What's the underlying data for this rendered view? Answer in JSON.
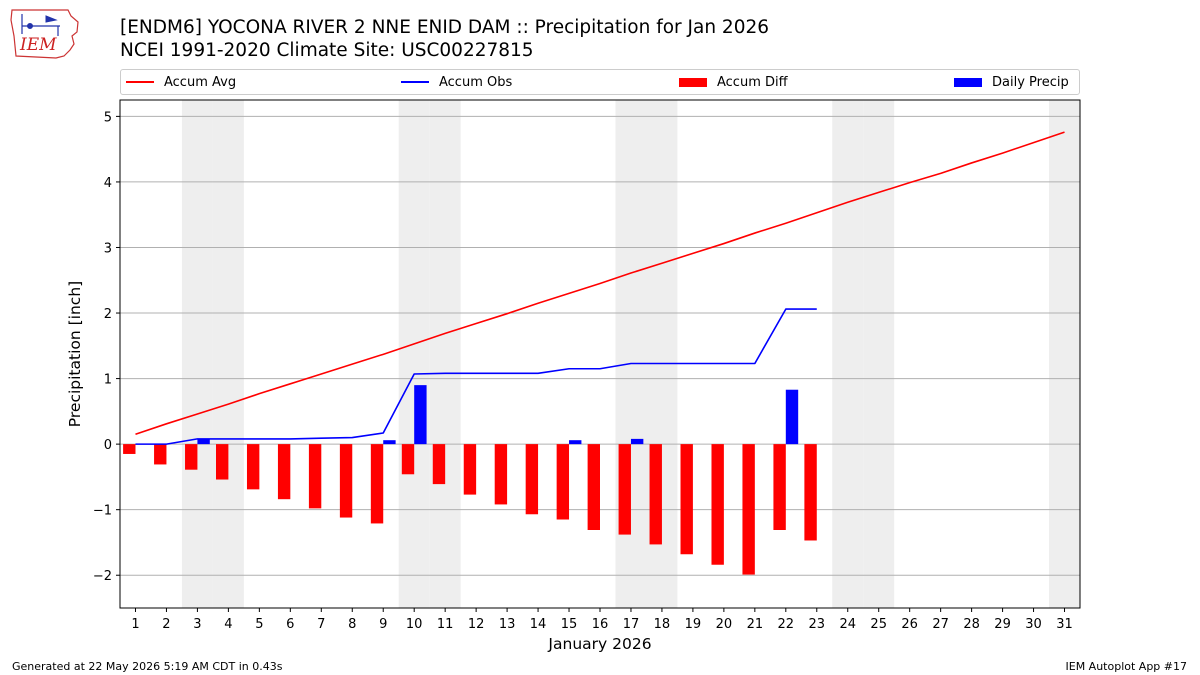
{
  "logo": {
    "text": "IEM"
  },
  "title": {
    "line1": "[ENDM6] YOCONA RIVER 2 NNE ENID DAM :: Precipitation for Jan 2026",
    "line2": "NCEI 1991-2020 Climate Site: USC00227815"
  },
  "legend": {
    "items": [
      {
        "label": "Accum Avg",
        "color": "#ff0000",
        "kind": "line"
      },
      {
        "label": "Accum Obs",
        "color": "#0000ff",
        "kind": "line"
      },
      {
        "label": "Accum Diff",
        "color": "#ff0000",
        "kind": "bar"
      },
      {
        "label": "Daily Precip",
        "color": "#0000ff",
        "kind": "bar"
      }
    ]
  },
  "footer": {
    "left": "Generated at 22 May 2026 5:19 AM CDT in 0.43s",
    "right": "IEM Autoplot App #17"
  },
  "chart_data": {
    "type": "bar",
    "xlabel": "January 2026",
    "ylabel": "Precipitation [inch]",
    "xlim": [
      0.5,
      31.5
    ],
    "ylim": [
      -2.5,
      5.25
    ],
    "xticks": [
      1,
      2,
      3,
      4,
      5,
      6,
      7,
      8,
      9,
      10,
      11,
      12,
      13,
      14,
      15,
      16,
      17,
      18,
      19,
      20,
      21,
      22,
      23,
      24,
      25,
      26,
      27,
      28,
      29,
      30,
      31
    ],
    "yticks": [
      -2,
      -1,
      0,
      1,
      2,
      3,
      4,
      5
    ],
    "ytick_labels": [
      "−2",
      "−1",
      "0",
      "1",
      "2",
      "3",
      "4",
      "5"
    ],
    "grid": "horizontal",
    "weekend_days": [
      3,
      4,
      10,
      11,
      17,
      18,
      24,
      25,
      31
    ],
    "weekend_color": "#eeeeee",
    "series": [
      {
        "name": "Accum Avg",
        "kind": "line",
        "color": "#ff0000",
        "x": [
          1,
          2,
          3,
          4,
          5,
          6,
          7,
          8,
          9,
          10,
          11,
          12,
          13,
          14,
          15,
          16,
          17,
          18,
          19,
          20,
          21,
          22,
          23,
          24,
          25,
          26,
          27,
          28,
          29,
          30,
          31
        ],
        "values": [
          0.15,
          0.31,
          0.46,
          0.61,
          0.77,
          0.92,
          1.07,
          1.22,
          1.37,
          1.53,
          1.69,
          1.84,
          1.99,
          2.15,
          2.3,
          2.45,
          2.61,
          2.76,
          2.91,
          3.06,
          3.22,
          3.37,
          3.53,
          3.69,
          3.84,
          3.99,
          4.13,
          4.29,
          4.44,
          4.6,
          4.76
        ]
      },
      {
        "name": "Accum Obs",
        "kind": "line",
        "color": "#0000ff",
        "x": [
          1,
          2,
          3,
          4,
          5,
          6,
          7,
          8,
          9,
          10,
          11,
          12,
          13,
          14,
          15,
          16,
          17,
          18,
          19,
          20,
          21,
          22,
          23
        ],
        "values": [
          0.0,
          0.0,
          0.08,
          0.08,
          0.08,
          0.08,
          0.09,
          0.1,
          0.17,
          1.07,
          1.08,
          1.08,
          1.08,
          1.08,
          1.15,
          1.15,
          1.23,
          1.23,
          1.23,
          1.23,
          1.23,
          2.06,
          2.06
        ]
      },
      {
        "name": "Accum Diff",
        "kind": "bar",
        "color": "#ff0000",
        "offset": -0.2,
        "x": [
          1,
          2,
          3,
          4,
          5,
          6,
          7,
          8,
          9,
          10,
          11,
          12,
          13,
          14,
          15,
          16,
          17,
          18,
          19,
          20,
          21,
          22,
          23
        ],
        "values": [
          -0.15,
          -0.31,
          -0.39,
          -0.54,
          -0.69,
          -0.84,
          -0.98,
          -1.12,
          -1.21,
          -0.46,
          -0.61,
          -0.77,
          -0.92,
          -1.07,
          -1.15,
          -1.31,
          -1.38,
          -1.53,
          -1.68,
          -1.84,
          -1.99,
          -1.31,
          -1.47
        ]
      },
      {
        "name": "Daily Precip",
        "kind": "bar",
        "color": "#0000ff",
        "offset": 0.2,
        "x": [
          1,
          2,
          3,
          4,
          5,
          6,
          7,
          8,
          9,
          10,
          11,
          12,
          13,
          14,
          15,
          16,
          17,
          18,
          19,
          20,
          21,
          22,
          23
        ],
        "values": [
          0,
          0,
          0.08,
          0,
          0,
          0,
          0,
          0,
          0.06,
          0.9,
          0,
          0,
          0,
          0,
          0.06,
          0,
          0.08,
          0,
          0,
          0,
          0,
          0.83,
          0
        ]
      }
    ]
  }
}
